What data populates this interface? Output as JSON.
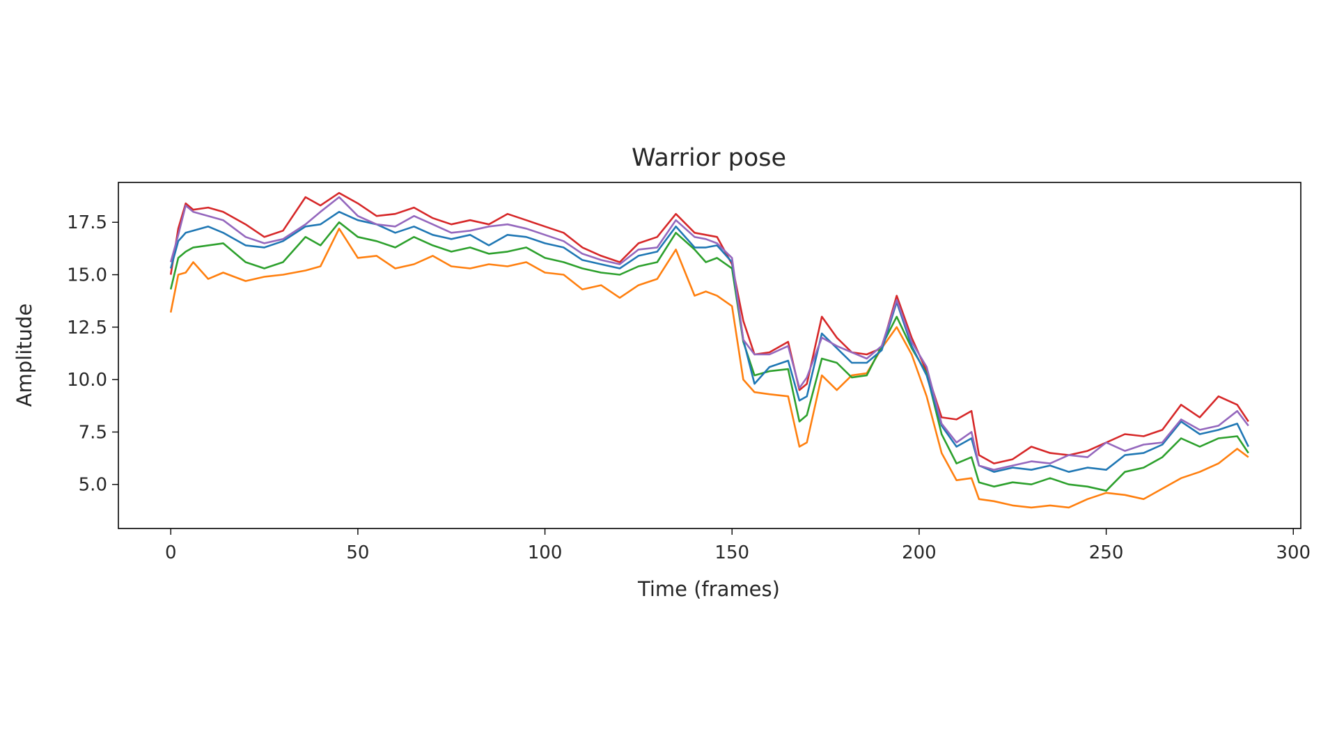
{
  "chart_data": {
    "type": "line",
    "title": "Warrior pose",
    "xlabel": "Time (frames)",
    "ylabel": "Amplitude",
    "xlim": [
      -14,
      302
    ],
    "ylim": [
      2.9,
      19.4
    ],
    "xticks": [
      0,
      50,
      100,
      150,
      200,
      250,
      300
    ],
    "xtick_labels": [
      "0",
      "50",
      "100",
      "150",
      "200",
      "250",
      "300"
    ],
    "yticks": [
      5.0,
      7.5,
      10.0,
      12.5,
      15.0,
      17.5
    ],
    "ytick_labels": [
      "5.0",
      "7.5",
      "10.0",
      "12.5",
      "15.0",
      "17.5"
    ],
    "grid": false,
    "legend": "none",
    "x": [
      0,
      2,
      4,
      6,
      10,
      14,
      20,
      25,
      30,
      36,
      40,
      45,
      50,
      55,
      60,
      65,
      70,
      75,
      80,
      85,
      90,
      95,
      100,
      105,
      110,
      115,
      120,
      125,
      130,
      135,
      140,
      143,
      146,
      150,
      153,
      156,
      160,
      165,
      168,
      170,
      174,
      178,
      182,
      186,
      190,
      194,
      198,
      202,
      206,
      210,
      214,
      216,
      220,
      225,
      230,
      235,
      240,
      245,
      250,
      255,
      260,
      265,
      270,
      275,
      280,
      285,
      288
    ],
    "series": [
      {
        "color": "#d62728",
        "values": [
          15.0,
          17.2,
          18.4,
          18.1,
          18.2,
          18.0,
          17.4,
          16.8,
          17.1,
          18.7,
          18.3,
          18.9,
          18.4,
          17.8,
          17.9,
          18.2,
          17.7,
          17.4,
          17.6,
          17.4,
          17.9,
          17.6,
          17.3,
          17.0,
          16.3,
          15.9,
          15.6,
          16.5,
          16.8,
          17.9,
          17.0,
          16.9,
          16.8,
          15.5,
          12.8,
          11.2,
          11.3,
          11.8,
          9.5,
          9.8,
          13.0,
          12.0,
          11.3,
          11.2,
          11.5,
          14.0,
          12.0,
          10.4,
          8.2,
          8.1,
          8.5,
          6.4,
          6.0,
          6.2,
          6.8,
          6.5,
          6.4,
          6.6,
          7.0,
          7.4,
          7.3,
          7.6,
          8.8,
          8.2,
          9.2,
          8.8,
          8.0
        ]
      },
      {
        "color": "#ff7f0e",
        "values": [
          13.2,
          15.0,
          15.1,
          15.6,
          14.8,
          15.1,
          14.7,
          14.9,
          15.0,
          15.2,
          15.4,
          17.2,
          15.8,
          15.9,
          15.3,
          15.5,
          15.9,
          15.4,
          15.3,
          15.5,
          15.4,
          15.6,
          15.1,
          15.0,
          14.3,
          14.5,
          13.9,
          14.5,
          14.8,
          16.2,
          14.0,
          14.2,
          14.0,
          13.5,
          10.0,
          9.4,
          9.3,
          9.2,
          6.8,
          7.0,
          10.2,
          9.5,
          10.2,
          10.3,
          11.5,
          12.5,
          11.2,
          9.2,
          6.5,
          5.2,
          5.3,
          4.3,
          4.2,
          4.0,
          3.9,
          4.0,
          3.9,
          4.3,
          4.6,
          4.5,
          4.3,
          4.8,
          5.3,
          5.6,
          6.0,
          6.7,
          6.3
        ]
      },
      {
        "color": "#2ca02c",
        "values": [
          14.3,
          15.8,
          16.1,
          16.3,
          16.4,
          16.5,
          15.6,
          15.3,
          15.6,
          16.8,
          16.4,
          17.5,
          16.8,
          16.6,
          16.3,
          16.8,
          16.4,
          16.1,
          16.3,
          16.0,
          16.1,
          16.3,
          15.8,
          15.6,
          15.3,
          15.1,
          15.0,
          15.4,
          15.6,
          17.0,
          16.2,
          15.6,
          15.8,
          15.3,
          11.8,
          10.2,
          10.4,
          10.5,
          8.0,
          8.3,
          11.0,
          10.8,
          10.1,
          10.2,
          11.6,
          13.0,
          11.5,
          10.3,
          7.4,
          6.0,
          6.3,
          5.1,
          4.9,
          5.1,
          5.0,
          5.3,
          5.0,
          4.9,
          4.7,
          5.6,
          5.8,
          6.3,
          7.2,
          6.8,
          7.2,
          7.3,
          6.5
        ]
      },
      {
        "color": "#1f77b4",
        "values": [
          15.3,
          16.6,
          17.0,
          17.1,
          17.3,
          17.0,
          16.4,
          16.3,
          16.6,
          17.3,
          17.4,
          18.0,
          17.6,
          17.4,
          17.0,
          17.3,
          16.9,
          16.7,
          16.9,
          16.4,
          16.9,
          16.8,
          16.5,
          16.3,
          15.7,
          15.5,
          15.3,
          15.9,
          16.1,
          17.3,
          16.3,
          16.3,
          16.4,
          15.6,
          11.9,
          9.8,
          10.6,
          10.9,
          9.0,
          9.2,
          12.2,
          11.5,
          10.8,
          10.8,
          11.4,
          13.7,
          11.6,
          10.2,
          7.8,
          6.8,
          7.2,
          5.9,
          5.6,
          5.8,
          5.7,
          5.9,
          5.6,
          5.8,
          5.7,
          6.4,
          6.5,
          6.9,
          8.0,
          7.4,
          7.6,
          7.9,
          6.8
        ]
      },
      {
        "color": "#9467bd",
        "values": [
          15.6,
          16.9,
          18.3,
          18.0,
          17.8,
          17.6,
          16.8,
          16.5,
          16.7,
          17.4,
          18.0,
          18.7,
          17.8,
          17.4,
          17.3,
          17.8,
          17.4,
          17.0,
          17.1,
          17.3,
          17.4,
          17.2,
          16.9,
          16.6,
          16.0,
          15.7,
          15.5,
          16.2,
          16.3,
          17.6,
          16.8,
          16.7,
          16.5,
          15.8,
          11.9,
          11.2,
          11.2,
          11.6,
          9.6,
          10.1,
          12.0,
          11.6,
          11.3,
          11.0,
          11.6,
          13.8,
          11.8,
          10.6,
          7.9,
          7.0,
          7.5,
          5.9,
          5.7,
          5.9,
          6.1,
          6.0,
          6.4,
          6.3,
          7.0,
          6.6,
          6.9,
          7.0,
          8.1,
          7.6,
          7.8,
          8.5,
          7.8
        ]
      }
    ]
  }
}
